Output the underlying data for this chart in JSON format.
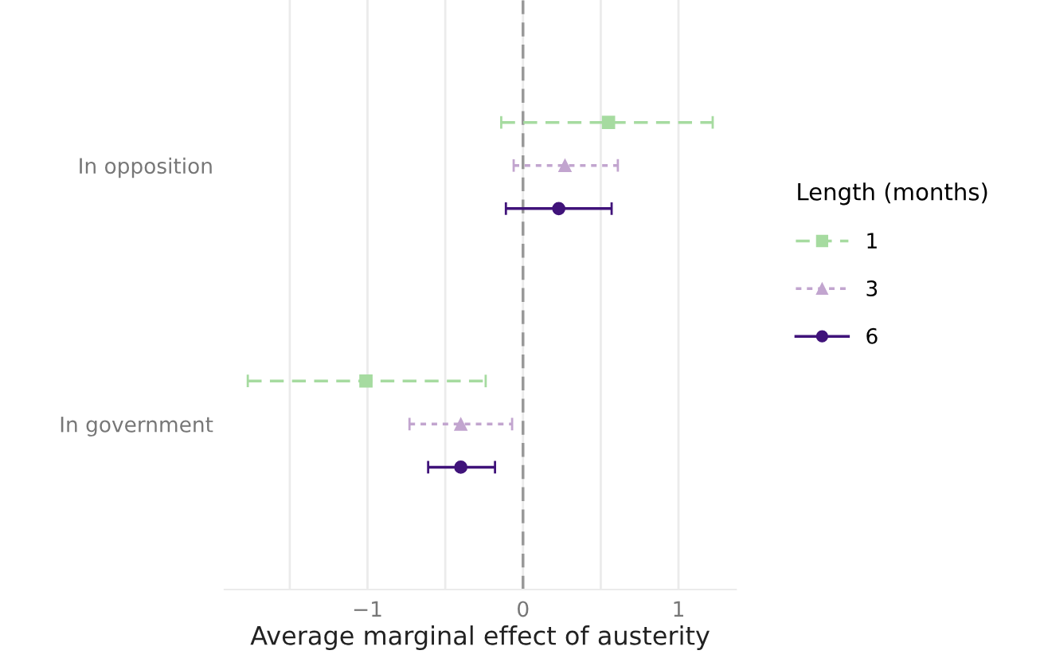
{
  "chart_data": {
    "type": "scatter",
    "orientation": "horizontal",
    "xlabel": "Average marginal effect of austerity",
    "legend_title": "Length (months)",
    "categories": [
      "In opposition",
      "In government"
    ],
    "series": [
      {
        "name": "1",
        "color": "#a6dba0",
        "marker": "square",
        "line_style": "dashed",
        "values": [
          0.55,
          -1.01
        ],
        "errors": [
          [
            -0.14,
            1.22
          ],
          [
            -1.77,
            -0.24
          ]
        ]
      },
      {
        "name": "3",
        "color": "#c2a5cf",
        "marker": "triangle",
        "line_style": "dotted",
        "values": [
          0.27,
          -0.4
        ],
        "errors": [
          [
            -0.06,
            0.61
          ],
          [
            -0.73,
            -0.07
          ]
        ]
      },
      {
        "name": "6",
        "color": "#40137a",
        "marker": "circle",
        "line_style": "solid",
        "values": [
          0.23,
          -0.4
        ],
        "errors": [
          [
            -0.11,
            0.57
          ],
          [
            -0.61,
            -0.18
          ]
        ]
      }
    ],
    "xlim": [
      -1.92,
      1.37
    ],
    "xticks": [
      {
        "value": -1.5,
        "label": null
      },
      {
        "value": -1,
        "label": "−1"
      },
      {
        "value": -0.5,
        "label": null
      },
      0,
      {
        "value": 0.5,
        "label": null
      },
      1
    ],
    "ref_lines": [
      {
        "axis": "x",
        "value": 0,
        "color": "#999999",
        "line_style": "dashed"
      }
    ],
    "grid": "x",
    "legend": "right"
  }
}
